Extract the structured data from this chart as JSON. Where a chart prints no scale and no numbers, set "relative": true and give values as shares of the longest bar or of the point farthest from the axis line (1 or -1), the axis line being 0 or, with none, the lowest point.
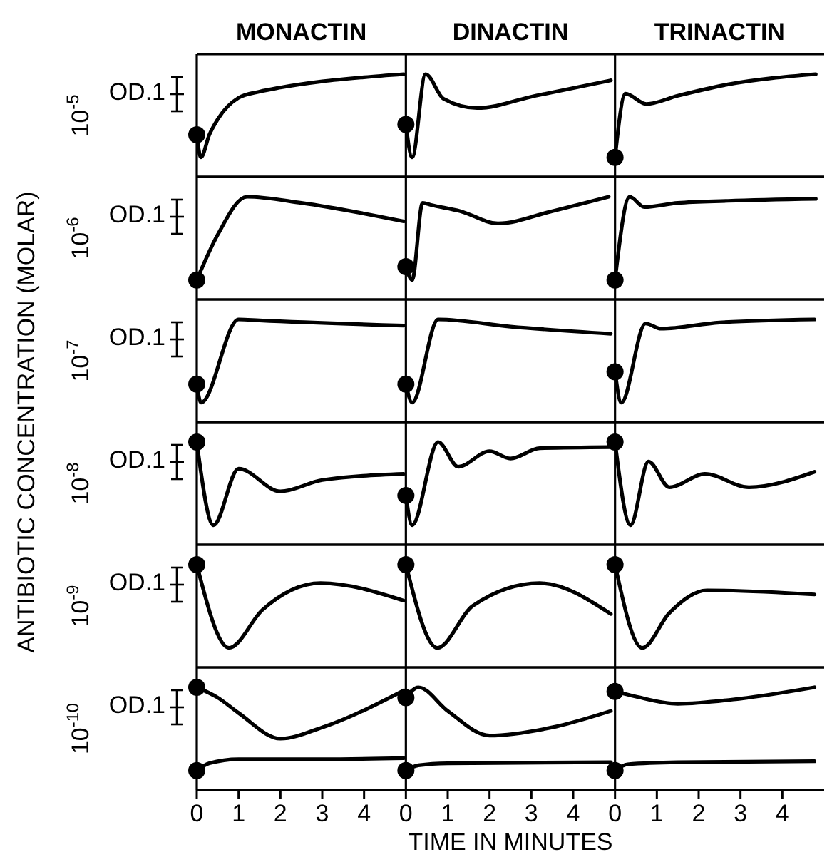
{
  "chart_data": [
    {
      "type": "line",
      "title": "MONACTIN",
      "ylabel": "10$^{-5}$",
      "annotations": [
        "OD.1",
        "ANTIBIOTIC CONCENTRATION (MOLAR)"
      ],
      "relative": true,
      "xlim": [
        0,
        5
      ],
      "tick_labels": false,
      "series": [
        {
          "color": "#000000",
          "x": [
            0,
            0.1,
            0.3,
            0.5,
            1,
            1.5,
            2,
            3,
            4,
            4.95
          ],
          "values": [
            0.41,
            0.19,
            0.41,
            0.56,
            0.77,
            0.83,
            0.87,
            0.93,
            0.97,
            1
          ]
        },
        {
          "type": "scatter",
          "color": "#000000",
          "x": [
            0
          ],
          "values": [
            0.41
          ]
        }
      ]
    },
    {
      "type": "line",
      "title": "DINACTIN",
      "relative": true,
      "xlim": [
        0,
        5
      ],
      "tick_labels": false,
      "series": [
        {
          "color": "#000000",
          "x": [
            0,
            0.15,
            0.47,
            0.9,
            1.7,
            3.1,
            4.9
          ],
          "values": [
            0.51,
            0.19,
            1,
            0.76,
            0.67,
            0.79,
            0.94
          ]
        },
        {
          "type": "scatter",
          "color": "#000000",
          "x": [
            0
          ],
          "values": [
            0.51
          ]
        }
      ]
    },
    {
      "type": "line",
      "title": "TRINACTIN",
      "relative": true,
      "xlim": [
        0,
        5
      ],
      "tick_labels": false,
      "series": [
        {
          "color": "#000000",
          "x": [
            0,
            0.25,
            0.75,
            1.5,
            2.7,
            4.8
          ],
          "values": [
            0.19,
            0.81,
            0.71,
            0.79,
            0.9,
            1
          ]
        },
        {
          "type": "scatter",
          "color": "#000000",
          "x": [
            0
          ],
          "values": [
            0.19
          ]
        }
      ]
    },
    {
      "type": "line",
      "ylabel": "10$^{-6}$",
      "annotations": [
        "OD.1"
      ],
      "relative": true,
      "xlim": [
        0,
        5
      ],
      "tick_labels": false,
      "series": [
        {
          "color": "#000000",
          "x": [
            0,
            0.5,
            1.2,
            2.5,
            4.95
          ],
          "values": [
            0.19,
            0.63,
            1,
            0.94,
            0.76
          ]
        },
        {
          "type": "scatter",
          "color": "#000000",
          "x": [
            0
          ],
          "values": [
            0.19
          ]
        }
      ]
    },
    {
      "type": "line",
      "relative": true,
      "xlim": [
        0,
        5
      ],
      "tick_labels": false,
      "series": [
        {
          "color": "#000000",
          "x": [
            0,
            0.15,
            0.4,
            0.6,
            1.3,
            2.2,
            3.5,
            4.85
          ],
          "values": [
            0.32,
            0.19,
            0.94,
            0.92,
            0.86,
            0.74,
            0.86,
            1
          ]
        },
        {
          "type": "scatter",
          "color": "#000000",
          "x": [
            0
          ],
          "values": [
            0.32
          ]
        }
      ]
    },
    {
      "type": "line",
      "relative": true,
      "xlim": [
        0,
        5
      ],
      "tick_labels": false,
      "series": [
        {
          "color": "#000000",
          "x": [
            0,
            0.35,
            0.7,
            1.5,
            2.7,
            4.8
          ],
          "values": [
            0.19,
            1,
            0.9,
            0.94,
            0.96,
            0.98
          ]
        },
        {
          "type": "scatter",
          "color": "#000000",
          "x": [
            0
          ],
          "values": [
            0.19
          ]
        }
      ]
    },
    {
      "type": "line",
      "ylabel": "10$^{-7}$",
      "annotations": [
        "OD.1"
      ],
      "relative": true,
      "xlim": [
        0,
        5
      ],
      "tick_labels": false,
      "series": [
        {
          "color": "#000000",
          "x": [
            0,
            0.1,
            1,
            1.5,
            4.95
          ],
          "values": [
            0.37,
            0.19,
            1,
            0.99,
            0.94
          ]
        },
        {
          "type": "scatter",
          "color": "#000000",
          "x": [
            0
          ],
          "values": [
            0.37
          ]
        }
      ]
    },
    {
      "type": "line",
      "relative": true,
      "xlim": [
        0,
        5
      ],
      "tick_labels": false,
      "series": [
        {
          "color": "#000000",
          "x": [
            0,
            0.15,
            0.77,
            2.5,
            4.9
          ],
          "values": [
            0.37,
            0.19,
            1,
            0.93,
            0.86
          ]
        },
        {
          "type": "scatter",
          "color": "#000000",
          "x": [
            0
          ],
          "values": [
            0.37
          ]
        }
      ]
    },
    {
      "type": "line",
      "relative": true,
      "xlim": [
        0,
        5
      ],
      "tick_labels": false,
      "series": [
        {
          "color": "#000000",
          "x": [
            0,
            0.15,
            0.73,
            1.1,
            2.5,
            4.77
          ],
          "values": [
            0.49,
            0.19,
            0.96,
            0.91,
            0.97,
            1
          ]
        },
        {
          "type": "scatter",
          "color": "#000000",
          "x": [
            0
          ],
          "values": [
            0.49
          ]
        }
      ]
    },
    {
      "type": "line",
      "ylabel": "10$^{-8}$",
      "annotations": [
        "OD.1"
      ],
      "relative": true,
      "xlim": [
        0,
        5
      ],
      "tick_labels": false,
      "series": [
        {
          "color": "#000000",
          "x": [
            0,
            0.4,
            1,
            2,
            3,
            4.95
          ],
          "values": [
            1,
            0.19,
            0.74,
            0.52,
            0.63,
            0.69
          ]
        },
        {
          "type": "scatter",
          "color": "#000000",
          "x": [
            0
          ],
          "values": [
            1
          ]
        }
      ]
    },
    {
      "type": "line",
      "relative": true,
      "xlim": [
        0,
        5
      ],
      "tick_labels": false,
      "series": [
        {
          "color": "#000000",
          "x": [
            0,
            0.15,
            0.77,
            1.25,
            2,
            2.5,
            3.2,
            4.9
          ],
          "values": [
            0.48,
            0.19,
            1,
            0.76,
            0.91,
            0.84,
            0.94,
            0.95
          ]
        },
        {
          "type": "scatter",
          "color": "#000000",
          "x": [
            0
          ],
          "values": [
            0.48
          ]
        }
      ]
    },
    {
      "type": "line",
      "relative": true,
      "xlim": [
        0,
        5
      ],
      "tick_labels": false,
      "series": [
        {
          "color": "#000000",
          "x": [
            0,
            0.37,
            0.8,
            1.3,
            2.15,
            3.2,
            4.77
          ],
          "values": [
            1,
            0.19,
            0.81,
            0.56,
            0.69,
            0.56,
            0.71
          ]
        },
        {
          "type": "scatter",
          "color": "#000000",
          "x": [
            0
          ],
          "values": [
            1
          ]
        }
      ]
    },
    {
      "type": "line",
      "ylabel": "10$^{-9}$",
      "annotations": [
        "OD.1"
      ],
      "relative": true,
      "xlim": [
        0,
        5
      ],
      "tick_labels": false,
      "series": [
        {
          "color": "#000000",
          "x": [
            0,
            0.77,
            1.57,
            2.96,
            4.95
          ],
          "values": [
            1,
            0.19,
            0.56,
            0.82,
            0.65
          ]
        },
        {
          "type": "scatter",
          "color": "#000000",
          "x": [
            0
          ],
          "values": [
            1
          ]
        }
      ]
    },
    {
      "type": "line",
      "relative": true,
      "xlim": [
        0,
        5
      ],
      "tick_labels": false,
      "series": [
        {
          "color": "#000000",
          "x": [
            0,
            0.75,
            1.6,
            3.2,
            4.9
          ],
          "values": [
            1,
            0.19,
            0.6,
            0.82,
            0.52
          ]
        },
        {
          "type": "scatter",
          "color": "#000000",
          "x": [
            0
          ],
          "values": [
            1
          ]
        }
      ]
    },
    {
      "type": "line",
      "relative": true,
      "xlim": [
        0,
        5
      ],
      "tick_labels": false,
      "series": [
        {
          "color": "#000000",
          "x": [
            0,
            0.65,
            1.3,
            2.2,
            4.77
          ],
          "values": [
            1,
            0.19,
            0.53,
            0.75,
            0.71
          ]
        },
        {
          "type": "scatter",
          "color": "#000000",
          "x": [
            0
          ],
          "values": [
            1
          ]
        }
      ]
    },
    {
      "type": "line",
      "ylabel": "10$^{-10}$",
      "annotations": [
        "OD.1"
      ],
      "relative": true,
      "xlim": [
        0,
        5
      ],
      "xticks": [
        0,
        1,
        2,
        3,
        4
      ],
      "tick_labels": "x",
      "series": [
        {
          "color": "#000000",
          "x": [
            0,
            0.5,
            1,
            2,
            3,
            4.95
          ],
          "values": [
            1,
            0.9,
            0.75,
            0.5,
            0.61,
            0.97
          ]
        },
        {
          "color": "#000000",
          "x": [
            0,
            0.3,
            1,
            3,
            4.95
          ],
          "values": [
            0.19,
            0.26,
            0.3,
            0.3,
            0.31
          ]
        },
        {
          "type": "scatter",
          "color": "#000000",
          "x": [
            0,
            0
          ],
          "values": [
            1,
            0.19
          ]
        }
      ]
    },
    {
      "type": "line",
      "xlabel": "TIME IN MINUTES",
      "relative": true,
      "xlim": [
        0,
        5
      ],
      "xticks": [
        0,
        1,
        2,
        3,
        4
      ],
      "tick_labels": "x",
      "series": [
        {
          "color": "#000000",
          "x": [
            0,
            0.3,
            1,
            2,
            3.5,
            4.9
          ],
          "values": [
            0.9,
            1,
            0.77,
            0.53,
            0.61,
            0.77
          ]
        },
        {
          "color": "#000000",
          "x": [
            0,
            0.3,
            1,
            4.9
          ],
          "values": [
            0.19,
            0.24,
            0.26,
            0.27
          ]
        },
        {
          "type": "scatter",
          "color": "#000000",
          "x": [
            0,
            0
          ],
          "values": [
            0.9,
            0.19
          ]
        }
      ]
    },
    {
      "type": "line",
      "relative": true,
      "xlim": [
        0,
        5
      ],
      "xticks": [
        0,
        1,
        2,
        3,
        4
      ],
      "tick_labels": "x",
      "series": [
        {
          "color": "#000000",
          "x": [
            0,
            0.5,
            1.5,
            3,
            4.77
          ],
          "values": [
            0.96,
            0.91,
            0.84,
            0.89,
            1
          ]
        },
        {
          "color": "#000000",
          "x": [
            0,
            0.3,
            1.5,
            4.77
          ],
          "values": [
            0.19,
            0.25,
            0.27,
            0.28
          ]
        },
        {
          "type": "scatter",
          "color": "#000000",
          "x": [
            0,
            0
          ],
          "values": [
            0.96,
            0.19
          ]
        }
      ]
    }
  ]
}
